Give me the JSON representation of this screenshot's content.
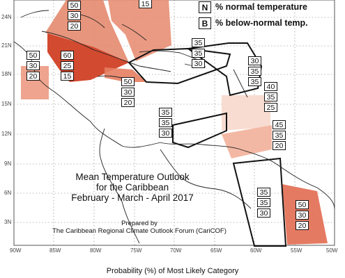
{
  "legend": {
    "items": [
      {
        "key": "N",
        "label": "% normal temperature"
      },
      {
        "key": "B",
        "label": "% below-normal temp."
      }
    ]
  },
  "title": {
    "line1": "Mean Temperature Outlook",
    "line2": "for the Caribbean",
    "line3": "February - March - April 2017",
    "prepared_by": "Prepared by",
    "organization": "The Caribbean Regional Climate Outlook Forum (CariCOF)"
  },
  "footer": "Probability (%) of Most Likely Category",
  "lat_labels": [
    "24N",
    "21N",
    "18N",
    "15N",
    "12N",
    "9N",
    "6N",
    "3N"
  ],
  "lon_labels": [
    "90W",
    "85W",
    "80W",
    "75W",
    "70W",
    "65W",
    "60W",
    "55W",
    "50W"
  ],
  "regions": [
    {
      "name": "bahamas-north",
      "values": [
        "50",
        "30",
        "20"
      ]
    },
    {
      "name": "bahamas-east",
      "values": [
        "",
        "",
        "15"
      ]
    },
    {
      "name": "belize-yucatan",
      "values": [
        "50",
        "30",
        "20"
      ]
    },
    {
      "name": "cuba-west",
      "values": [
        "60",
        "25",
        "15"
      ]
    },
    {
      "name": "jamaica-cayman",
      "values": [
        "50",
        "30",
        "20"
      ]
    },
    {
      "name": "hispaniola-puertorico",
      "values": [
        "35",
        "35",
        "30"
      ]
    },
    {
      "name": "leeward-islands",
      "values": [
        "30",
        "35",
        "35"
      ]
    },
    {
      "name": "windward-islands",
      "values": [
        "40",
        "35",
        "25"
      ]
    },
    {
      "name": "abc-islands",
      "values": [
        "35",
        "35",
        "30"
      ]
    },
    {
      "name": "trinidad-tobago",
      "values": [
        "45",
        "35",
        "20"
      ]
    },
    {
      "name": "guyana",
      "values": [
        "35",
        "35",
        "30"
      ]
    },
    {
      "name": "suriname-guiana",
      "values": [
        "50",
        "30",
        "20"
      ]
    }
  ],
  "colors": {
    "strong": "#d9533a",
    "medium": "#e47a5d",
    "light": "#ee9f88",
    "pale": "#f7d7cc",
    "outline": "#111111"
  }
}
